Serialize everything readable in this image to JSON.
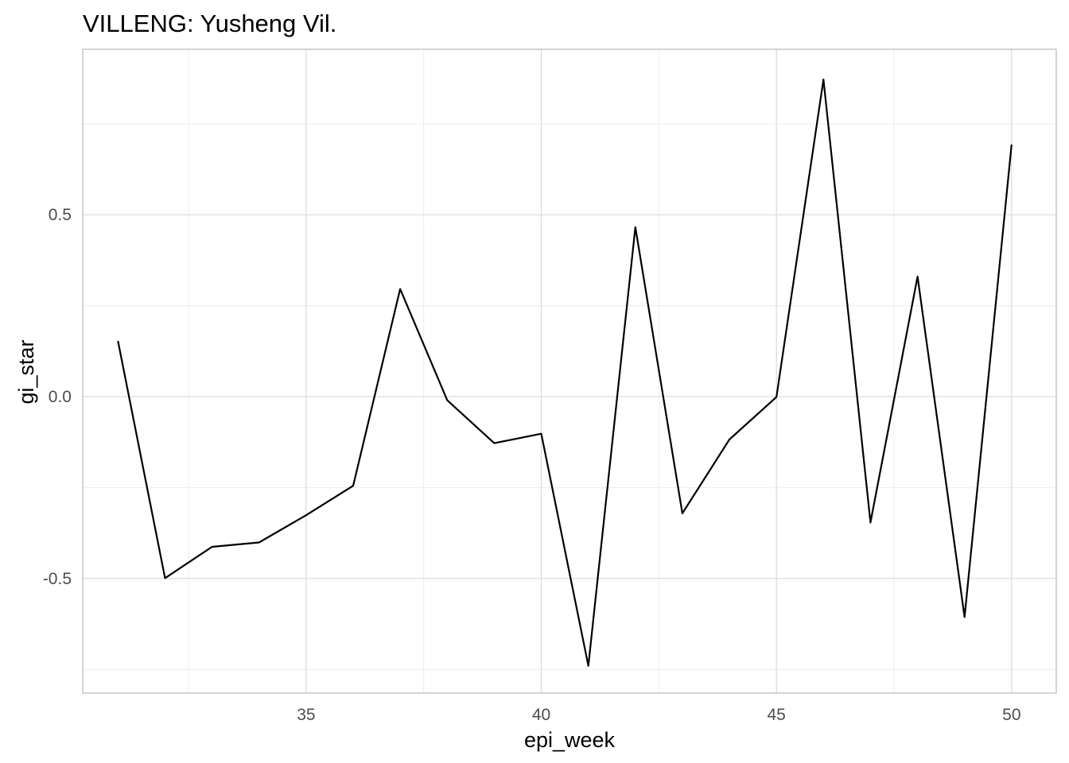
{
  "chart_data": {
    "type": "line",
    "title": "VILLENG: Yusheng Vil.",
    "xlabel": "epi_week",
    "ylabel": "gi_star",
    "xlim": [
      30.25,
      50.95
    ],
    "ylim": [
      -0.815,
      0.955
    ],
    "x_ticks": [
      35,
      40,
      45,
      50
    ],
    "x_tick_labels": [
      "35",
      "40",
      "45",
      "50"
    ],
    "y_ticks": [
      -0.5,
      0.0,
      0.5
    ],
    "y_tick_labels": [
      "-0.5",
      "0.0",
      "0.5"
    ],
    "x_minor": [
      32.5,
      37.5,
      42.5,
      47.5
    ],
    "y_minor": [
      -0.75,
      -0.25,
      0.25,
      0.75
    ],
    "grid": true,
    "series": [
      {
        "color": "#000000",
        "x": [
          31,
          32,
          33,
          34,
          35,
          36,
          37,
          38,
          39,
          40,
          41,
          42,
          43,
          44,
          45,
          46,
          47,
          48,
          49,
          50
        ],
        "y": [
          0.153,
          -0.499,
          -0.413,
          -0.401,
          -0.326,
          -0.245,
          0.296,
          -0.01,
          -0.128,
          -0.102,
          -0.74,
          0.466,
          -0.321,
          -0.118,
          -0.001,
          0.872,
          -0.346,
          0.33,
          -0.606,
          0.693
        ]
      }
    ]
  }
}
